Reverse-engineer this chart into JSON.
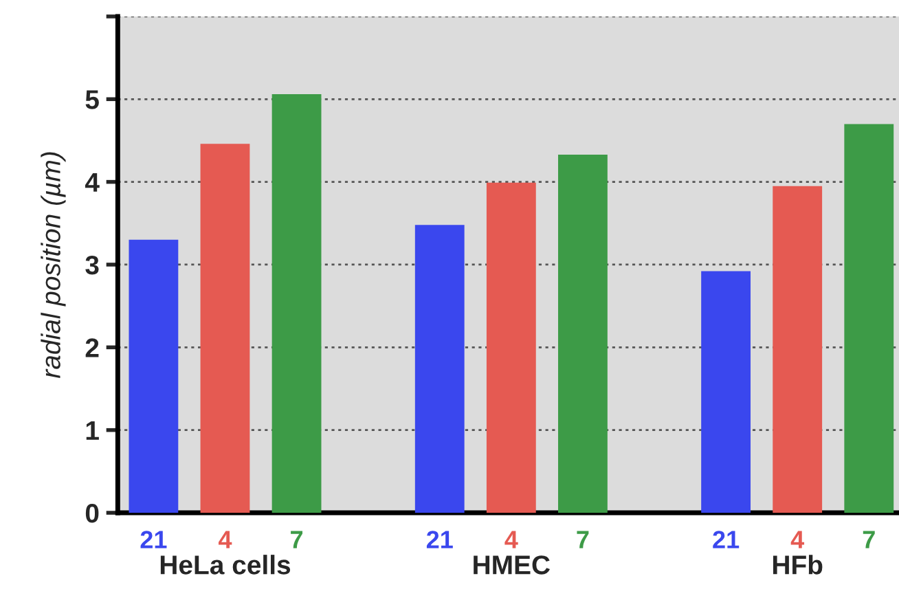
{
  "chart_data": {
    "type": "bar",
    "ylabel": "radial position (µm)",
    "categories": [
      "HeLa cells",
      "HMEC",
      "HFb"
    ],
    "series": [
      {
        "name": "21",
        "color": "#3a47ee",
        "values": [
          3.3,
          3.48,
          2.92
        ]
      },
      {
        "name": "4",
        "color": "#e55a52",
        "values": [
          4.46,
          3.99,
          3.95
        ]
      },
      {
        "name": "7",
        "color": "#3d9b47",
        "values": [
          5.06,
          4.33,
          4.7
        ]
      }
    ],
    "ylim": [
      0,
      6
    ],
    "yticks": [
      0,
      1,
      2,
      3,
      4,
      5,
      {
        "value": 6,
        "label": null
      }
    ],
    "grid": "y",
    "legend": false
  }
}
